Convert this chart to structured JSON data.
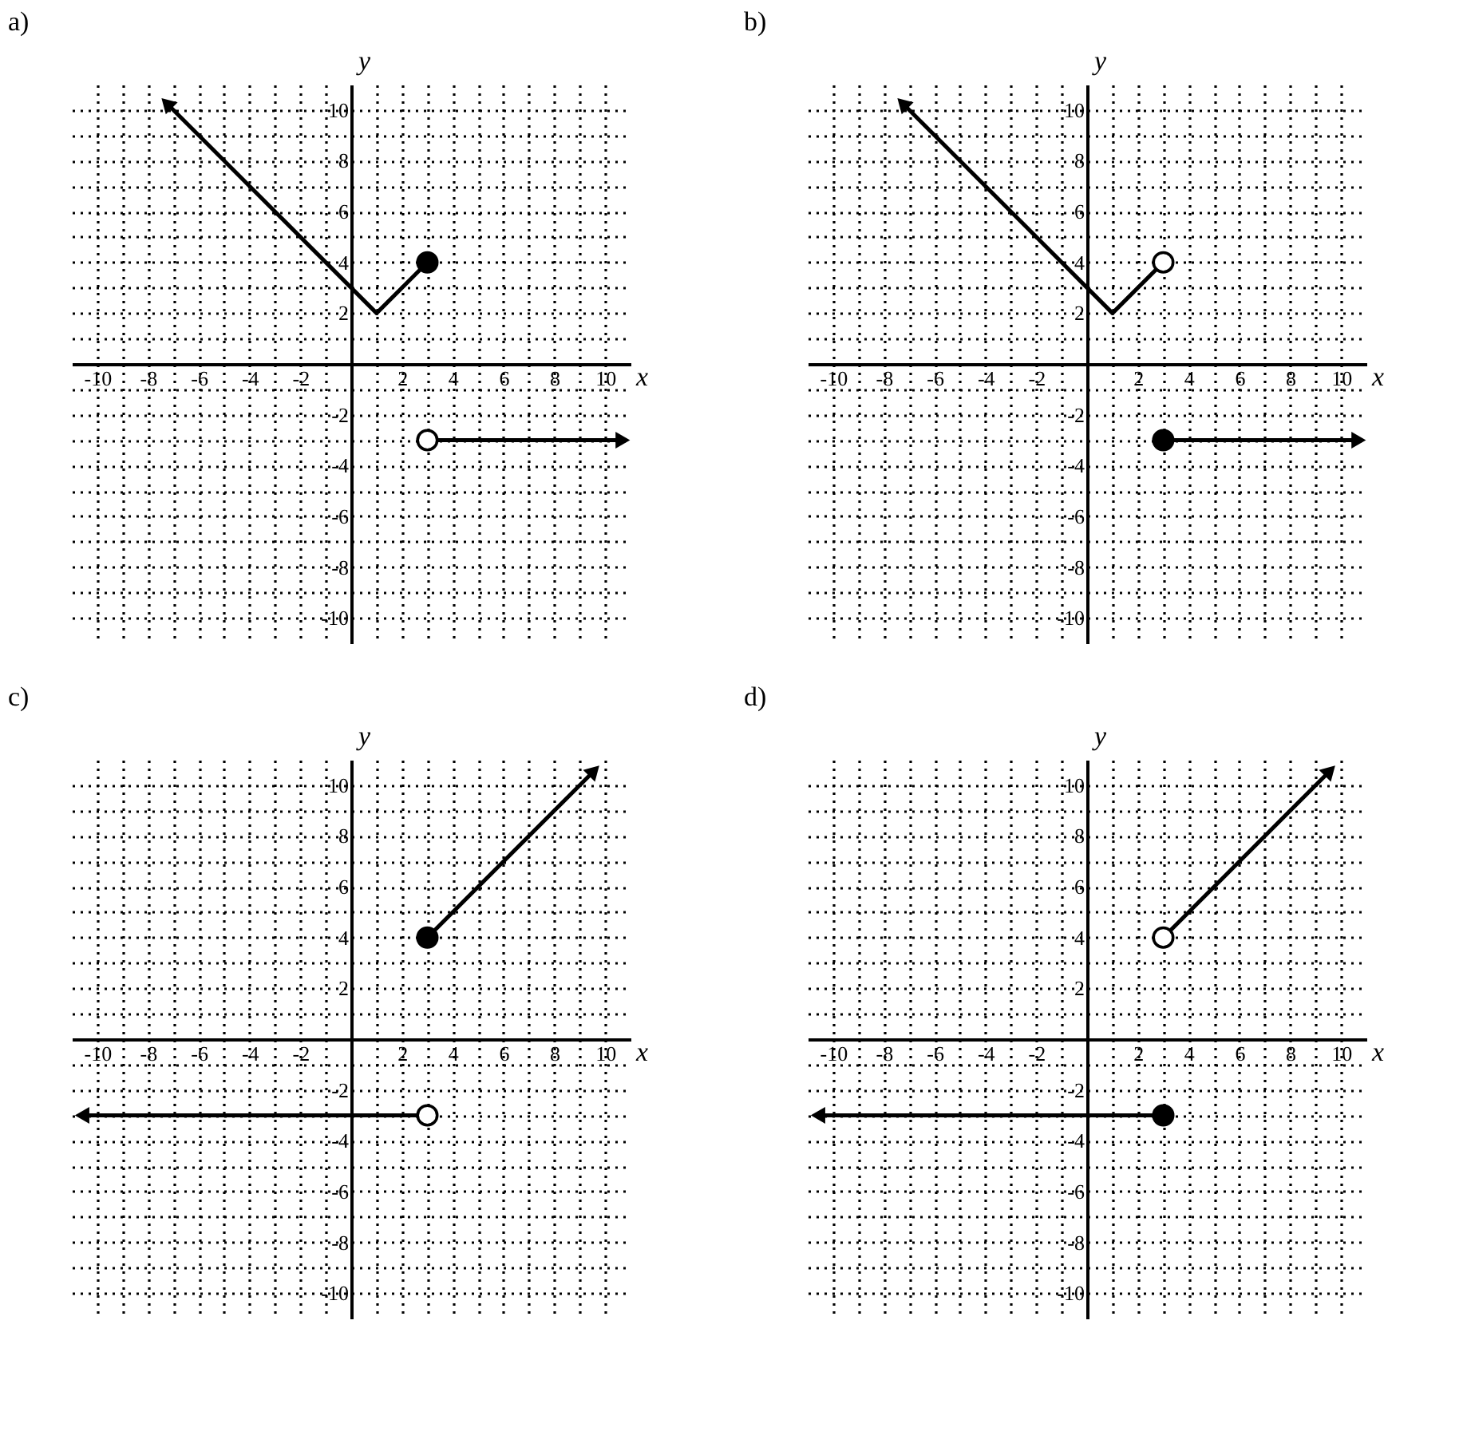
{
  "chart_data": [
    {
      "type": "line",
      "title": "a)",
      "xlabel": "x",
      "ylabel": "y",
      "xlim": [
        -11,
        11
      ],
      "ylim": [
        -11,
        11
      ],
      "grid": true,
      "line_style": "solid",
      "xticks": [
        -10,
        {
          "value": -9,
          "label": null
        },
        -8,
        {
          "value": -7,
          "label": null
        },
        -6,
        {
          "value": -5,
          "label": null
        },
        -4,
        {
          "value": -3,
          "label": null
        },
        -2,
        {
          "value": -1,
          "label": null
        },
        {
          "value": 0,
          "label": null
        },
        {
          "value": 1,
          "label": null
        },
        2,
        {
          "value": 3,
          "label": null
        },
        4,
        {
          "value": 5,
          "label": null
        },
        6,
        {
          "value": 7,
          "label": null
        },
        8,
        {
          "value": 9,
          "label": null
        },
        10
      ],
      "yticks": [
        -10,
        {
          "value": -9,
          "label": null
        },
        -8,
        {
          "value": -7,
          "label": null
        },
        -6,
        {
          "value": -5,
          "label": null
        },
        -4,
        {
          "value": -3,
          "label": null
        },
        -2,
        {
          "value": -1,
          "label": null
        },
        {
          "value": 0,
          "label": null
        },
        {
          "value": 1,
          "label": null
        },
        2,
        {
          "value": 3,
          "label": null
        },
        4,
        {
          "value": 5,
          "label": null
        },
        6,
        {
          "value": 7,
          "label": null
        },
        8,
        {
          "value": 9,
          "label": null
        },
        10
      ],
      "series": [
        {
          "type": "line",
          "x": [
            -7.2,
            1,
            3
          ],
          "values": [
            10.2,
            2,
            4
          ],
          "color": "#000000"
        },
        {
          "type": "line",
          "x": [
            3,
            10.6
          ],
          "values": [
            -3,
            -3
          ],
          "color": "#000000"
        },
        {
          "type": "scatter",
          "marker": "circle",
          "x": [
            3
          ],
          "values": [
            4
          ],
          "color": "#000000"
        },
        {
          "type": "scatter",
          "marker": "circle",
          "x": [
            3
          ],
          "values": [
            -3
          ],
          "color": "#ffffff"
        }
      ]
    },
    {
      "type": "line",
      "title": "b)",
      "xlabel": "x",
      "ylabel": "y",
      "xlim": [
        -11,
        11
      ],
      "ylim": [
        -11,
        11
      ],
      "grid": true,
      "line_style": "solid",
      "xticks": [
        -10,
        {
          "value": -9,
          "label": null
        },
        -8,
        {
          "value": -7,
          "label": null
        },
        -6,
        {
          "value": -5,
          "label": null
        },
        -4,
        {
          "value": -3,
          "label": null
        },
        -2,
        {
          "value": -1,
          "label": null
        },
        {
          "value": 0,
          "label": null
        },
        {
          "value": 1,
          "label": null
        },
        2,
        {
          "value": 3,
          "label": null
        },
        4,
        {
          "value": 5,
          "label": null
        },
        6,
        {
          "value": 7,
          "label": null
        },
        8,
        {
          "value": 9,
          "label": null
        },
        10
      ],
      "yticks": [
        -10,
        {
          "value": -9,
          "label": null
        },
        -8,
        {
          "value": -7,
          "label": null
        },
        -6,
        {
          "value": -5,
          "label": null
        },
        -4,
        {
          "value": -3,
          "label": null
        },
        -2,
        {
          "value": -1,
          "label": null
        },
        {
          "value": 0,
          "label": null
        },
        {
          "value": 1,
          "label": null
        },
        2,
        {
          "value": 3,
          "label": null
        },
        4,
        {
          "value": 5,
          "label": null
        },
        6,
        {
          "value": 7,
          "label": null
        },
        8,
        {
          "value": 9,
          "label": null
        },
        10
      ],
      "series": [
        {
          "type": "line",
          "x": [
            -7.2,
            1,
            3
          ],
          "values": [
            10.2,
            2,
            4
          ],
          "color": "#000000"
        },
        {
          "type": "line",
          "x": [
            3,
            10.6
          ],
          "values": [
            -3,
            -3
          ],
          "color": "#000000"
        },
        {
          "type": "scatter",
          "marker": "circle",
          "x": [
            3
          ],
          "values": [
            4
          ],
          "color": "#ffffff"
        },
        {
          "type": "scatter",
          "marker": "circle",
          "x": [
            3
          ],
          "values": [
            -3
          ],
          "color": "#000000"
        }
      ]
    },
    {
      "type": "line",
      "title": "c)",
      "xlabel": "x",
      "ylabel": "y",
      "xlim": [
        -11,
        11
      ],
      "ylim": [
        -11,
        11
      ],
      "grid": true,
      "line_style": "solid",
      "xticks": [
        -10,
        {
          "value": -9,
          "label": null
        },
        -8,
        {
          "value": -7,
          "label": null
        },
        -6,
        {
          "value": -5,
          "label": null
        },
        -4,
        {
          "value": -3,
          "label": null
        },
        -2,
        {
          "value": -1,
          "label": null
        },
        {
          "value": 0,
          "label": null
        },
        {
          "value": 1,
          "label": null
        },
        2,
        {
          "value": 3,
          "label": null
        },
        4,
        {
          "value": 5,
          "label": null
        },
        6,
        {
          "value": 7,
          "label": null
        },
        8,
        {
          "value": 9,
          "label": null
        },
        10
      ],
      "yticks": [
        -10,
        {
          "value": -9,
          "label": null
        },
        -8,
        {
          "value": -7,
          "label": null
        },
        -6,
        {
          "value": -5,
          "label": null
        },
        -4,
        {
          "value": -3,
          "label": null
        },
        -2,
        {
          "value": -1,
          "label": null
        },
        {
          "value": 0,
          "label": null
        },
        {
          "value": 1,
          "label": null
        },
        2,
        {
          "value": 3,
          "label": null
        },
        4,
        {
          "value": 5,
          "label": null
        },
        6,
        {
          "value": 7,
          "label": null
        },
        8,
        {
          "value": 9,
          "label": null
        },
        10
      ],
      "series": [
        {
          "type": "line",
          "x": [
            3,
            9.5
          ],
          "values": [
            4,
            10.5
          ],
          "color": "#000000"
        },
        {
          "type": "line",
          "x": [
            3,
            -10.5
          ],
          "values": [
            -3,
            -3
          ],
          "color": "#000000"
        },
        {
          "type": "scatter",
          "marker": "circle",
          "x": [
            3
          ],
          "values": [
            4
          ],
          "color": "#000000"
        },
        {
          "type": "scatter",
          "marker": "circle",
          "x": [
            3
          ],
          "values": [
            -3
          ],
          "color": "#ffffff"
        }
      ]
    },
    {
      "type": "line",
      "title": "d)",
      "xlabel": "x",
      "ylabel": "y",
      "xlim": [
        -11,
        11
      ],
      "ylim": [
        -11,
        11
      ],
      "grid": true,
      "line_style": "solid",
      "xticks": [
        -10,
        {
          "value": -9,
          "label": null
        },
        -8,
        {
          "value": -7,
          "label": null
        },
        -6,
        {
          "value": -5,
          "label": null
        },
        -4,
        {
          "value": -3,
          "label": null
        },
        -2,
        {
          "value": -1,
          "label": null
        },
        {
          "value": 0,
          "label": null
        },
        {
          "value": 1,
          "label": null
        },
        2,
        {
          "value": 3,
          "label": null
        },
        4,
        {
          "value": 5,
          "label": null
        },
        6,
        {
          "value": 7,
          "label": null
        },
        8,
        {
          "value": 9,
          "label": null
        },
        10
      ],
      "yticks": [
        -10,
        {
          "value": -9,
          "label": null
        },
        -8,
        {
          "value": -7,
          "label": null
        },
        -6,
        {
          "value": -5,
          "label": null
        },
        -4,
        {
          "value": -3,
          "label": null
        },
        -2,
        {
          "value": -1,
          "label": null
        },
        {
          "value": 0,
          "label": null
        },
        {
          "value": 1,
          "label": null
        },
        2,
        {
          "value": 3,
          "label": null
        },
        4,
        {
          "value": 5,
          "label": null
        },
        6,
        {
          "value": 7,
          "label": null
        },
        8,
        {
          "value": 9,
          "label": null
        },
        10
      ],
      "series": [
        {
          "type": "line",
          "x": [
            3,
            9.5
          ],
          "values": [
            4,
            10.5
          ],
          "color": "#000000"
        },
        {
          "type": "line",
          "x": [
            3,
            -10.5
          ],
          "values": [
            -3,
            -3
          ],
          "color": "#000000"
        },
        {
          "type": "scatter",
          "marker": "circle",
          "x": [
            3
          ],
          "values": [
            4
          ],
          "color": "#ffffff"
        },
        {
          "type": "scatter",
          "marker": "circle",
          "x": [
            3
          ],
          "values": [
            -3
          ],
          "color": "#000000"
        }
      ]
    }
  ]
}
